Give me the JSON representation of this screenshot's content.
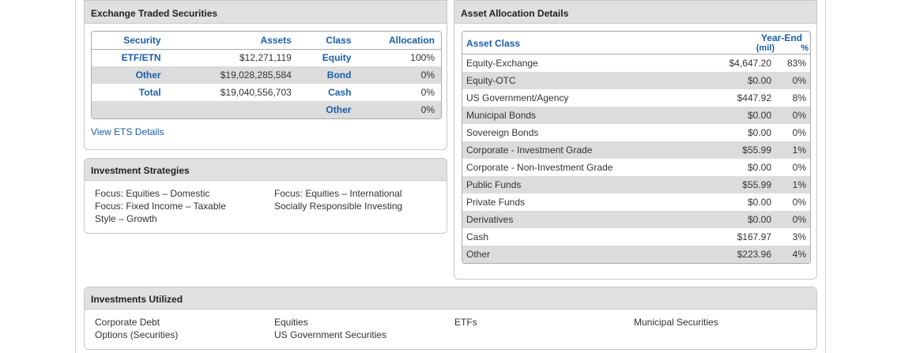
{
  "ets": {
    "title": "Exchange Traded Securities",
    "headers": {
      "security": "Security",
      "assets": "Assets",
      "class": "Class",
      "allocation": "Allocation"
    },
    "rows": [
      {
        "security": "ETF/ETN",
        "assets": "$12,271,119",
        "class": "Equity",
        "allocation": "100%"
      },
      {
        "security": "Other",
        "assets": "$19,028,285,584",
        "class": "Bond",
        "allocation": "0%"
      },
      {
        "security": "Total",
        "assets": "$19,040,556,703",
        "class": "Cash",
        "allocation": "0%"
      },
      {
        "security": "",
        "assets": "",
        "class": "Other",
        "allocation": "0%"
      }
    ],
    "link": "View ETS Details"
  },
  "strategies": {
    "title": "Investment Strategies",
    "left": [
      "Focus: Equities – Domestic",
      "Focus: Fixed Income – Taxable",
      "Style – Growth"
    ],
    "right": [
      "Focus: Equities – International",
      "Socially Responsible Investing"
    ]
  },
  "allocation": {
    "title": "Asset Allocation Details",
    "headers": {
      "asset_class": "Asset Class",
      "year_end": "Year-End",
      "mil": "(mil)",
      "pct": "%"
    },
    "rows": [
      {
        "name": "Equity-Exchange",
        "value": "$4,647.20",
        "pct": "83%"
      },
      {
        "name": "Equity-OTC",
        "value": "$0.00",
        "pct": "0%"
      },
      {
        "name": "US Government/Agency",
        "value": "$447.92",
        "pct": "8%"
      },
      {
        "name": "Municipal Bonds",
        "value": "$0.00",
        "pct": "0%"
      },
      {
        "name": "Sovereign Bonds",
        "value": "$0.00",
        "pct": "0%"
      },
      {
        "name": "Corporate - Investment Grade",
        "value": "$55.99",
        "pct": "1%"
      },
      {
        "name": "Corporate - Non-Investment Grade",
        "value": "$0.00",
        "pct": "0%"
      },
      {
        "name": "Public Funds",
        "value": "$55.99",
        "pct": "1%"
      },
      {
        "name": "Private Funds",
        "value": "$0.00",
        "pct": "0%"
      },
      {
        "name": "Derivatives",
        "value": "$0.00",
        "pct": "0%"
      },
      {
        "name": "Cash",
        "value": "$167.97",
        "pct": "3%"
      },
      {
        "name": "Other",
        "value": "$223.96",
        "pct": "4%"
      }
    ]
  },
  "utilized": {
    "title": "Investments Utilized",
    "columns": [
      [
        "Corporate Debt",
        "Options (Securities)"
      ],
      [
        "Equities",
        "US Government Securities"
      ],
      [
        "ETFs"
      ],
      [
        "Municipal Securities"
      ]
    ]
  },
  "colors": {
    "header_bg": "#e0e0e0",
    "link_blue": "#1a5ea8",
    "shade_row": "#dcdcdc"
  }
}
